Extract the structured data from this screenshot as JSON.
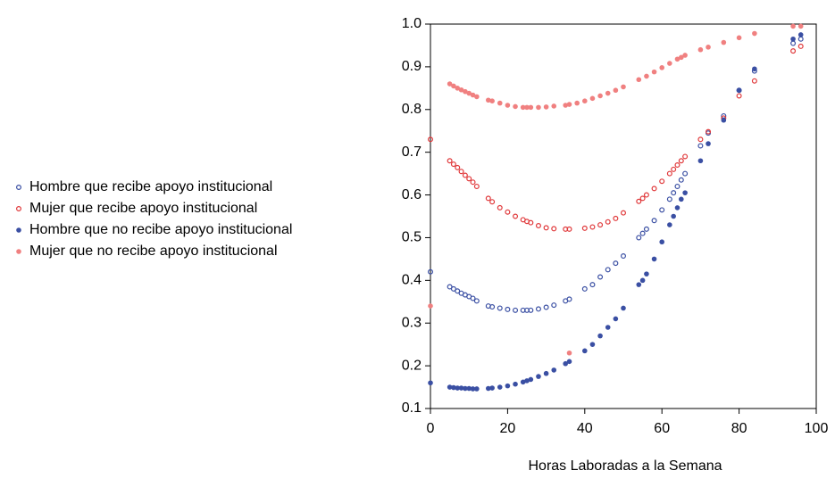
{
  "chart_data": {
    "type": "scatter",
    "x_label": "Horas Laboradas a la Semana",
    "xlim": [
      0,
      100
    ],
    "xticks": [
      0,
      20,
      40,
      60,
      80,
      100
    ],
    "ylim": [
      0.1,
      1.0
    ],
    "yticks": [
      0.1,
      0.2,
      0.3,
      0.4,
      0.5,
      0.6,
      0.7,
      0.8,
      0.9,
      {
        "value": 1,
        "label": "1.0"
      }
    ],
    "legend": "left",
    "series": [
      {
        "name": "Hombre que recibe apoyo institucional",
        "color": "#3a4fa3",
        "marker": "open",
        "x": [
          0,
          5,
          6,
          7,
          8,
          9,
          10,
          11,
          12,
          15,
          16,
          18,
          20,
          22,
          24,
          25,
          26,
          28,
          30,
          32,
          35,
          36,
          40,
          42,
          44,
          46,
          48,
          50,
          54,
          55,
          56,
          58,
          60,
          62,
          63,
          64,
          65,
          66,
          70,
          72,
          76,
          80,
          84,
          94,
          96
        ],
        "values": [
          0.42,
          0.385,
          0.38,
          0.375,
          0.37,
          0.366,
          0.362,
          0.358,
          0.352,
          0.34,
          0.338,
          0.335,
          0.332,
          0.33,
          0.33,
          0.33,
          0.33,
          0.333,
          0.337,
          0.342,
          0.352,
          0.356,
          0.38,
          0.39,
          0.408,
          0.425,
          0.44,
          0.457,
          0.5,
          0.51,
          0.52,
          0.54,
          0.565,
          0.59,
          0.605,
          0.62,
          0.635,
          0.65,
          0.715,
          0.745,
          0.785,
          0.845,
          0.89,
          0.955,
          0.965
        ]
      },
      {
        "name": "Mujer que recibe apoyo institucional",
        "color": "#e0383a",
        "marker": "open",
        "x": [
          0,
          5,
          6,
          7,
          8,
          9,
          10,
          11,
          12,
          15,
          16,
          18,
          20,
          22,
          24,
          25,
          26,
          28,
          30,
          32,
          35,
          36,
          40,
          42,
          44,
          46,
          48,
          50,
          54,
          55,
          56,
          58,
          60,
          62,
          63,
          64,
          65,
          66,
          70,
          72,
          76,
          80,
          84,
          94,
          96
        ],
        "values": [
          0.73,
          0.68,
          0.672,
          0.664,
          0.655,
          0.646,
          0.638,
          0.63,
          0.62,
          0.592,
          0.584,
          0.57,
          0.56,
          0.55,
          0.542,
          0.538,
          0.535,
          0.528,
          0.523,
          0.521,
          0.52,
          0.52,
          0.522,
          0.525,
          0.53,
          0.537,
          0.545,
          0.558,
          0.585,
          0.592,
          0.6,
          0.615,
          0.632,
          0.65,
          0.66,
          0.67,
          0.68,
          0.69,
          0.73,
          0.748,
          0.78,
          0.832,
          0.867,
          0.937,
          0.948
        ]
      },
      {
        "name": "Hombre que no recibe apoyo institucional",
        "color": "#3a4fa3",
        "marker": "filled",
        "x": [
          0,
          5,
          6,
          7,
          8,
          9,
          10,
          11,
          12,
          15,
          16,
          18,
          20,
          22,
          24,
          25,
          26,
          28,
          30,
          32,
          35,
          36,
          40,
          42,
          44,
          46,
          48,
          50,
          54,
          55,
          56,
          58,
          60,
          62,
          63,
          64,
          65,
          66,
          70,
          72,
          76,
          80,
          84,
          94,
          96
        ],
        "values": [
          0.16,
          0.15,
          0.149,
          0.148,
          0.148,
          0.147,
          0.147,
          0.146,
          0.146,
          0.147,
          0.148,
          0.15,
          0.153,
          0.157,
          0.162,
          0.165,
          0.168,
          0.175,
          0.182,
          0.19,
          0.205,
          0.21,
          0.235,
          0.25,
          0.27,
          0.29,
          0.31,
          0.335,
          0.39,
          0.4,
          0.415,
          0.45,
          0.49,
          0.53,
          0.55,
          0.57,
          0.59,
          0.605,
          0.68,
          0.72,
          0.775,
          0.845,
          0.895,
          0.965,
          0.975
        ]
      },
      {
        "name": "Mujer que no recibe apoyo institucional",
        "color": "#f08080",
        "marker": "filled",
        "x": [
          0,
          5,
          6,
          7,
          8,
          9,
          10,
          11,
          12,
          15,
          16,
          18,
          20,
          22,
          24,
          25,
          26,
          28,
          30,
          32,
          35,
          36,
          36,
          38,
          40,
          42,
          44,
          46,
          48,
          50,
          54,
          56,
          58,
          60,
          62,
          64,
          65,
          66,
          70,
          72,
          76,
          80,
          84,
          94,
          96
        ],
        "values": [
          0.34,
          0.86,
          0.855,
          0.85,
          0.846,
          0.842,
          0.838,
          0.834,
          0.83,
          0.822,
          0.82,
          0.815,
          0.81,
          0.807,
          0.805,
          0.805,
          0.805,
          0.805,
          0.806,
          0.808,
          0.81,
          0.812,
          0.23,
          0.815,
          0.82,
          0.826,
          0.832,
          0.838,
          0.845,
          0.853,
          0.87,
          0.878,
          0.888,
          0.898,
          0.908,
          0.918,
          0.922,
          0.927,
          0.94,
          0.946,
          0.957,
          0.968,
          0.978,
          0.995,
          0.995
        ]
      }
    ]
  }
}
